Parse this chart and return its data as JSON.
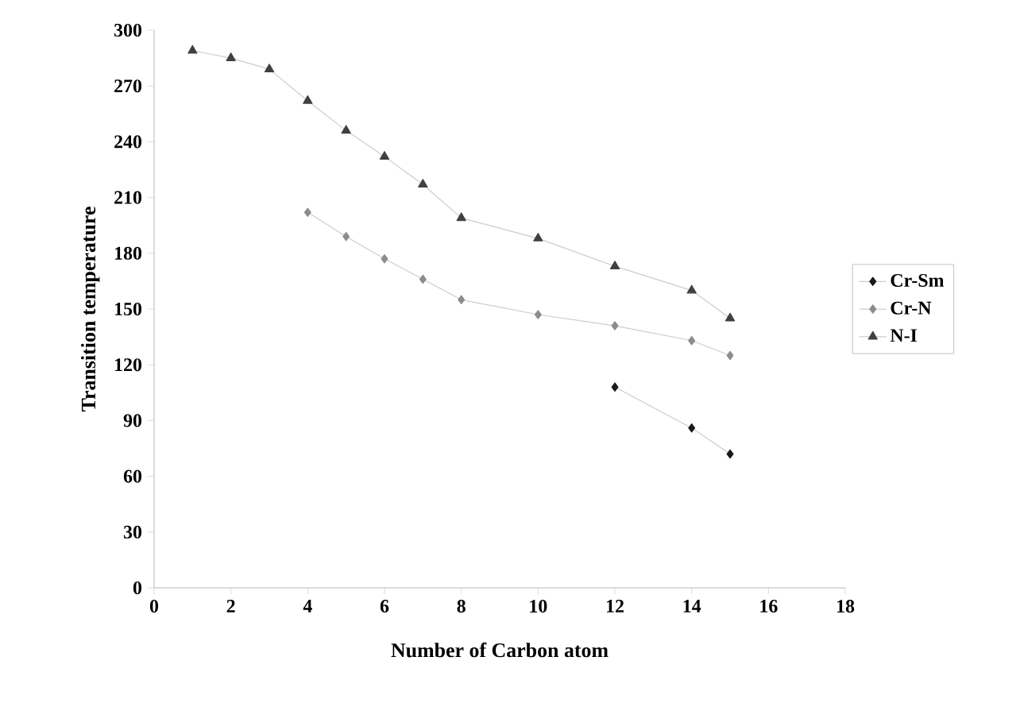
{
  "chart_data": {
    "type": "line",
    "xlabel": "Number of Carbon atom",
    "ylabel": "Transition temperature",
    "xlim": [
      0,
      18
    ],
    "xticks": [
      0,
      2,
      4,
      6,
      8,
      10,
      12,
      14,
      16,
      18
    ],
    "ylim": [
      0,
      300
    ],
    "yticks": [
      0,
      30,
      60,
      90,
      120,
      150,
      180,
      210,
      240,
      270,
      300
    ],
    "legend": "right",
    "grid": false,
    "series": [
      {
        "name": "Cr-Sm",
        "color": "#1a1a1a",
        "marker": "diamond",
        "x": [
          12,
          14,
          15
        ],
        "values": [
          108,
          86,
          72
        ]
      },
      {
        "name": "Cr-N",
        "color": "#8c8c8c",
        "marker": "diamond",
        "x": [
          4,
          5,
          6,
          7,
          8,
          10,
          12,
          14,
          15
        ],
        "values": [
          202,
          189,
          177,
          166,
          155,
          147,
          141,
          133,
          125
        ]
      },
      {
        "name": "N-I",
        "color": "#404040",
        "marker": "triangle",
        "x": [
          1,
          2,
          3,
          4,
          5,
          6,
          7,
          8,
          10,
          12,
          14,
          15
        ],
        "values": [
          289,
          285,
          279,
          262,
          246,
          232,
          217,
          199,
          188,
          173,
          160,
          145
        ]
      }
    ]
  }
}
